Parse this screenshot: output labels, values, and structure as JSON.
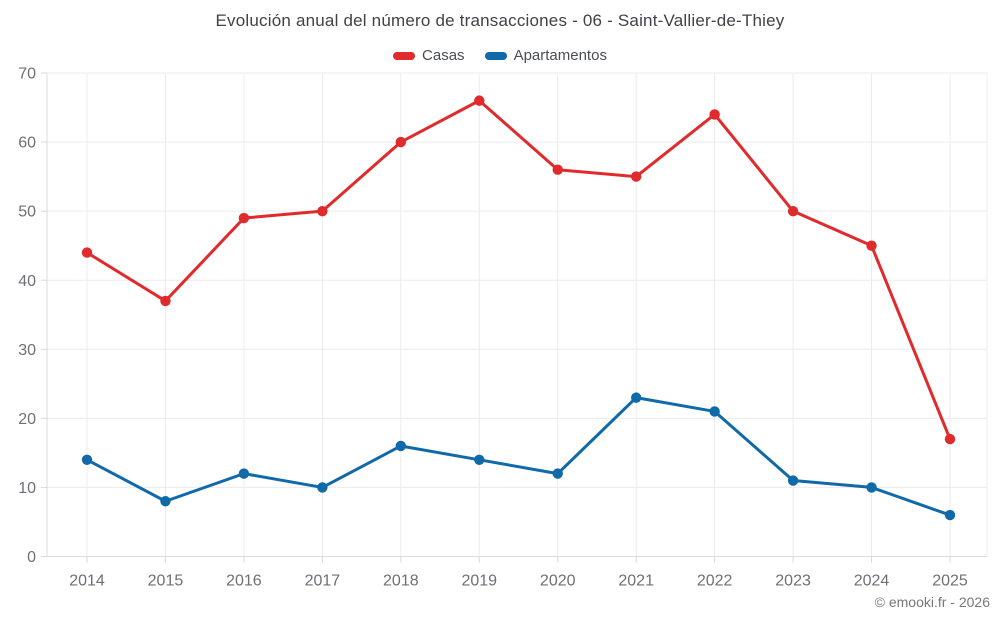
{
  "chart_data": {
    "type": "line",
    "title": "Evolución anual del número de transacciones - 06 - Saint-Vallier-de-Thiey",
    "categories": [
      "2014",
      "2015",
      "2016",
      "2017",
      "2018",
      "2019",
      "2020",
      "2021",
      "2022",
      "2023",
      "2024",
      "2025"
    ],
    "series": [
      {
        "name": "Casas",
        "color": "#e02a2b",
        "values": [
          44,
          37,
          49,
          50,
          60,
          66,
          56,
          55,
          64,
          50,
          45,
          17
        ]
      },
      {
        "name": "Apartamentos",
        "color": "#1069a8",
        "values": [
          14,
          8,
          12,
          10,
          16,
          14,
          12,
          23,
          21,
          11,
          10,
          6
        ]
      }
    ],
    "xlabel": "",
    "ylabel": "",
    "ylim": [
      0,
      70
    ],
    "yticks": [
      0,
      10,
      20,
      30,
      40,
      50,
      60,
      70
    ],
    "grid": true,
    "legend_position": "top",
    "footer": "© emooki.fr - 2026",
    "colors": {
      "grid": "#ececec",
      "axis": "#dcdcdc",
      "tick": "#d9d9d9",
      "tick_label": "#6d7074",
      "title_text": "#3f4246",
      "legend_text": "#4a4d51",
      "footer_text": "#75787c",
      "background": "#ffffff"
    }
  }
}
